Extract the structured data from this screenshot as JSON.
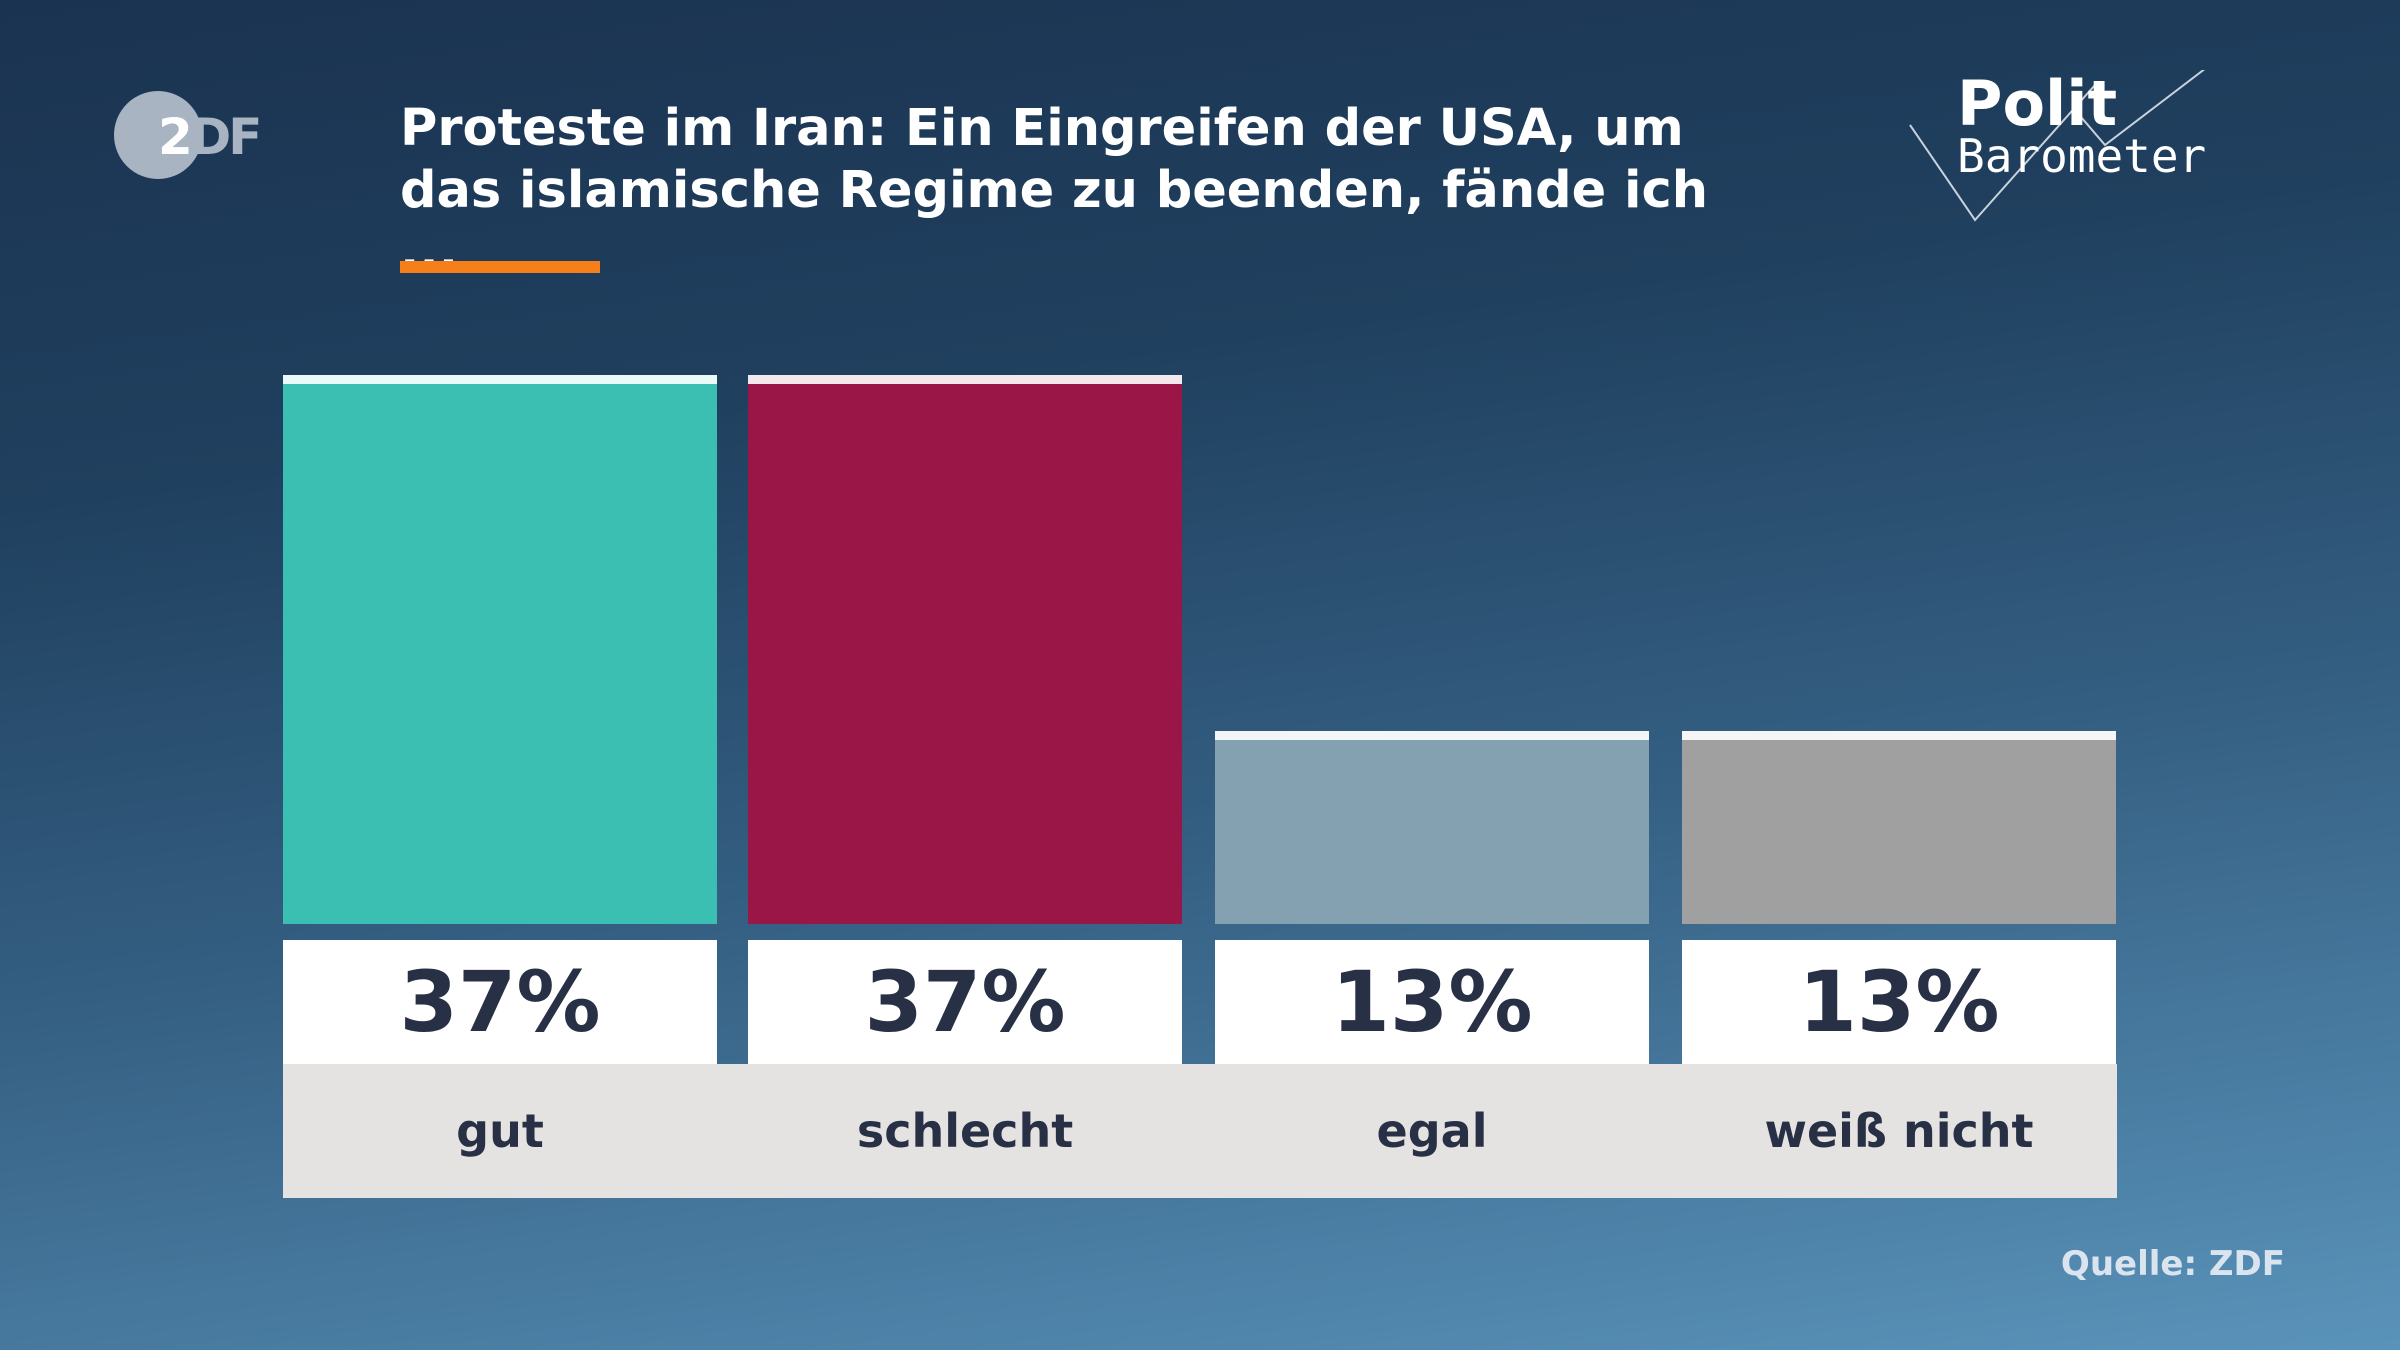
{
  "logo": {
    "zdf": "ZDF",
    "politbarometer_line1": "Polit",
    "politbarometer_line2": "Barometer"
  },
  "title": "Proteste im Iran: Ein Eingreifen der USA, um das islamische Regime zu beenden, fände ich ...",
  "source": "Quelle: ZDF",
  "colors": {
    "accent": "#f77f1a",
    "gut": "#3bbfb2",
    "schlecht": "#9a1646",
    "egal": "#84a1b2",
    "weiss_nicht": "#a0a0a0"
  },
  "chart_data": {
    "type": "bar",
    "title": "Proteste im Iran: Ein Eingreifen der USA, um das islamische Regime zu beenden, fände ich ...",
    "categories": [
      "gut",
      "schlecht",
      "egal",
      "weiß nicht"
    ],
    "values": [
      37,
      37,
      13,
      13
    ],
    "value_labels": [
      "37%",
      "37%",
      "13%",
      "13%"
    ],
    "colors": [
      "#3bbfb2",
      "#9a1646",
      "#84a1b2",
      "#a0a0a0"
    ],
    "unit": "%",
    "ylim": [
      0,
      37
    ],
    "grid": false,
    "xlabel": "",
    "ylabel": ""
  }
}
